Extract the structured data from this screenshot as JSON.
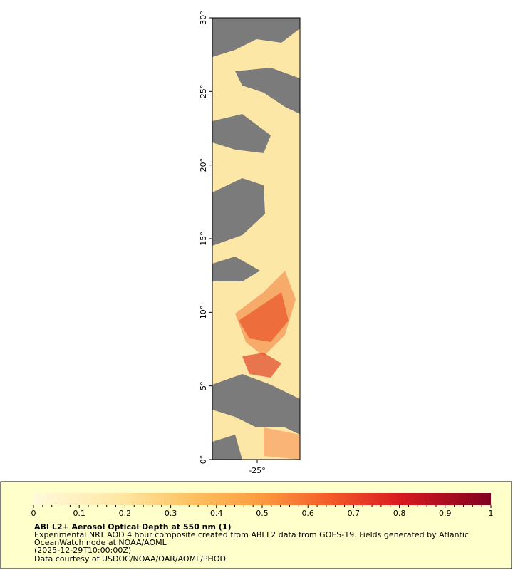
{
  "map": {
    "lat_ticks": [
      "30°",
      "25°",
      "20°",
      "15°",
      "10°",
      "5°",
      "0°"
    ],
    "lon_ticks": [
      "-25°"
    ]
  },
  "legend": {
    "colorbar_ticks": [
      0,
      0.1,
      0.2,
      0.3,
      0.4,
      0.5,
      0.6,
      0.7,
      0.8,
      0.9,
      1
    ],
    "title": "ABI L2+ Aerosol Optical Depth at 550 nm (1)",
    "description": [
      "Experimental NRT AOD 4 hour composite created from ABI L2 data from GOES-19. Fields generated by Atlantic",
      "OceanWatch node at NOAA/AOML",
      "(2025-12-29T10:00:00Z)"
    ],
    "credit": "Data courtesy of USDOC/NOAA/OAR/AOML/PHOD"
  }
}
